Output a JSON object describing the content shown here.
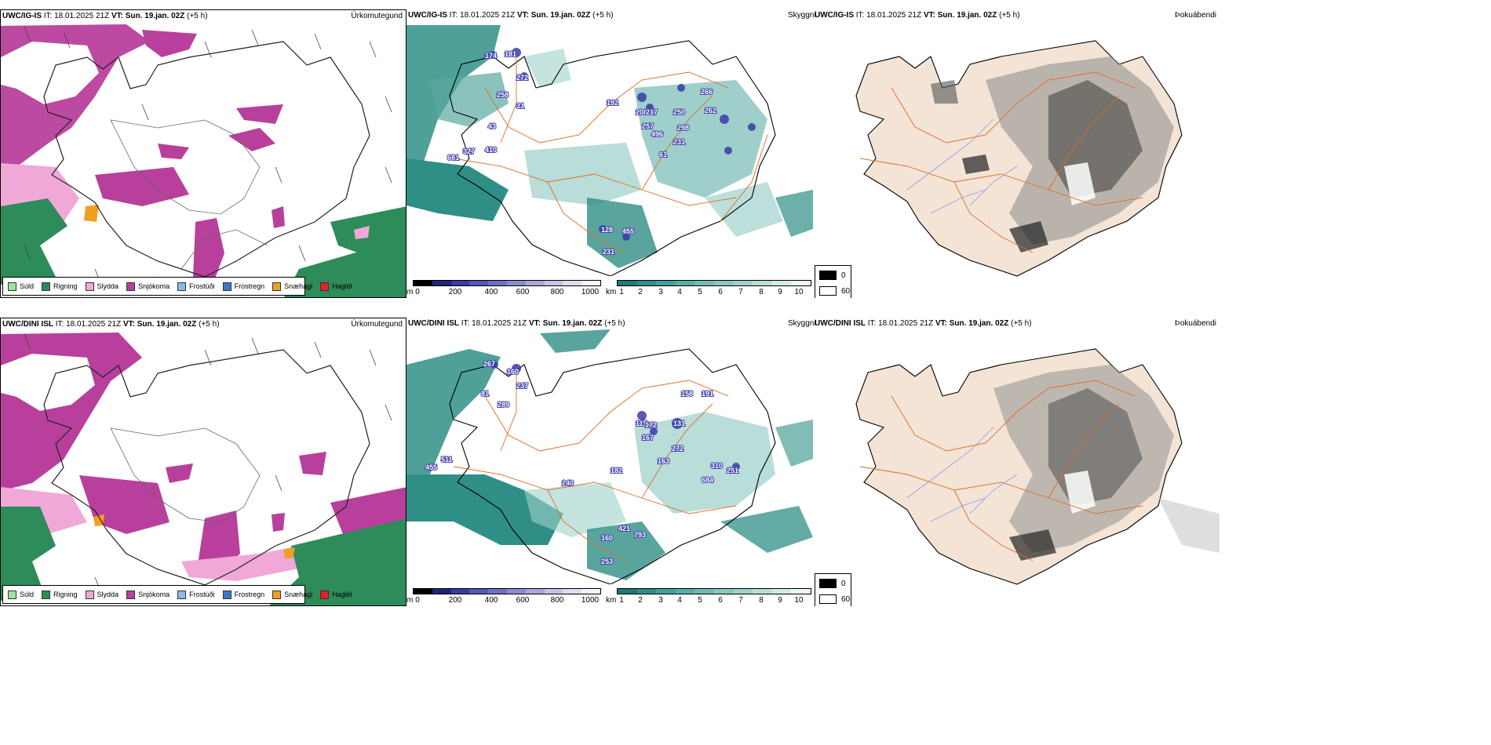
{
  "rows": [
    {
      "model": "UWC/IG-IS",
      "issue": "IT: 18.01.2025 21Z",
      "valid_label": "VT:",
      "valid": "Sun. 19.jan. 02Z",
      "lead": "(+5 h)",
      "precip_title": "Úrkomutegund",
      "cloud_title": "Skyggni",
      "fog_title": "Þokuábendi",
      "vis_labels": [
        "174",
        "181",
        "272",
        "258",
        "31",
        "43",
        "327",
        "410",
        "681",
        "192",
        "208",
        "217",
        "250",
        "298",
        "257",
        "496",
        "61",
        "231",
        "266",
        "262",
        "128",
        "455",
        "231"
      ]
    },
    {
      "model": "UWC/DINI ISL",
      "issue": "IT: 18.01.2025 21Z",
      "valid_label": "VT:",
      "valid": "Sun. 19.jan. 02Z",
      "lead": "(+5 h)",
      "precip_title": "Úrkomutegund",
      "cloud_title": "Skyggni",
      "fog_title": "Þokuábendi",
      "vis_labels": [
        "267",
        "160",
        "237",
        "81",
        "289",
        "511",
        "455",
        "240",
        "182",
        "115",
        "172",
        "167",
        "131",
        "272",
        "163",
        "310",
        "684",
        "251",
        "191",
        "158",
        "160",
        "421",
        "793",
        "253"
      ]
    }
  ],
  "precip_legend": [
    {
      "label": "Súld",
      "color": "#9be59b"
    },
    {
      "label": "Rigning",
      "color": "#2e8b5a"
    },
    {
      "label": "Slydda",
      "color": "#f0a8d8"
    },
    {
      "label": "Snjókoma",
      "color": "#b8409c"
    },
    {
      "label": "Frostúði",
      "color": "#8ab8f0"
    },
    {
      "label": "Frostregn",
      "color": "#3a78c8"
    },
    {
      "label": "Snæhagl",
      "color": "#f0a020"
    },
    {
      "label": "Haglél",
      "color": "#e82020"
    }
  ],
  "cloudbase_scale": {
    "unit": "m",
    "ticks": [
      "0",
      "200",
      "400",
      "600",
      "800",
      "1000"
    ]
  },
  "visibility_scale": {
    "unit": "km",
    "ticks": [
      "1",
      "2",
      "3",
      "4",
      "5",
      "6",
      "7",
      "8",
      "9",
      "10"
    ]
  },
  "fog_scale": {
    "ticks": [
      "0",
      "60"
    ]
  },
  "colors": {
    "snow": "#b8409c",
    "rain": "#2e8b5a",
    "sleet": "#f0a8d8",
    "snowpellet": "#f0a020",
    "vis": "#2f8f86",
    "cloudbase": "#3a3aa8",
    "land": "#f3e4d6",
    "roads": "#e06a20",
    "coast": "#000000"
  }
}
